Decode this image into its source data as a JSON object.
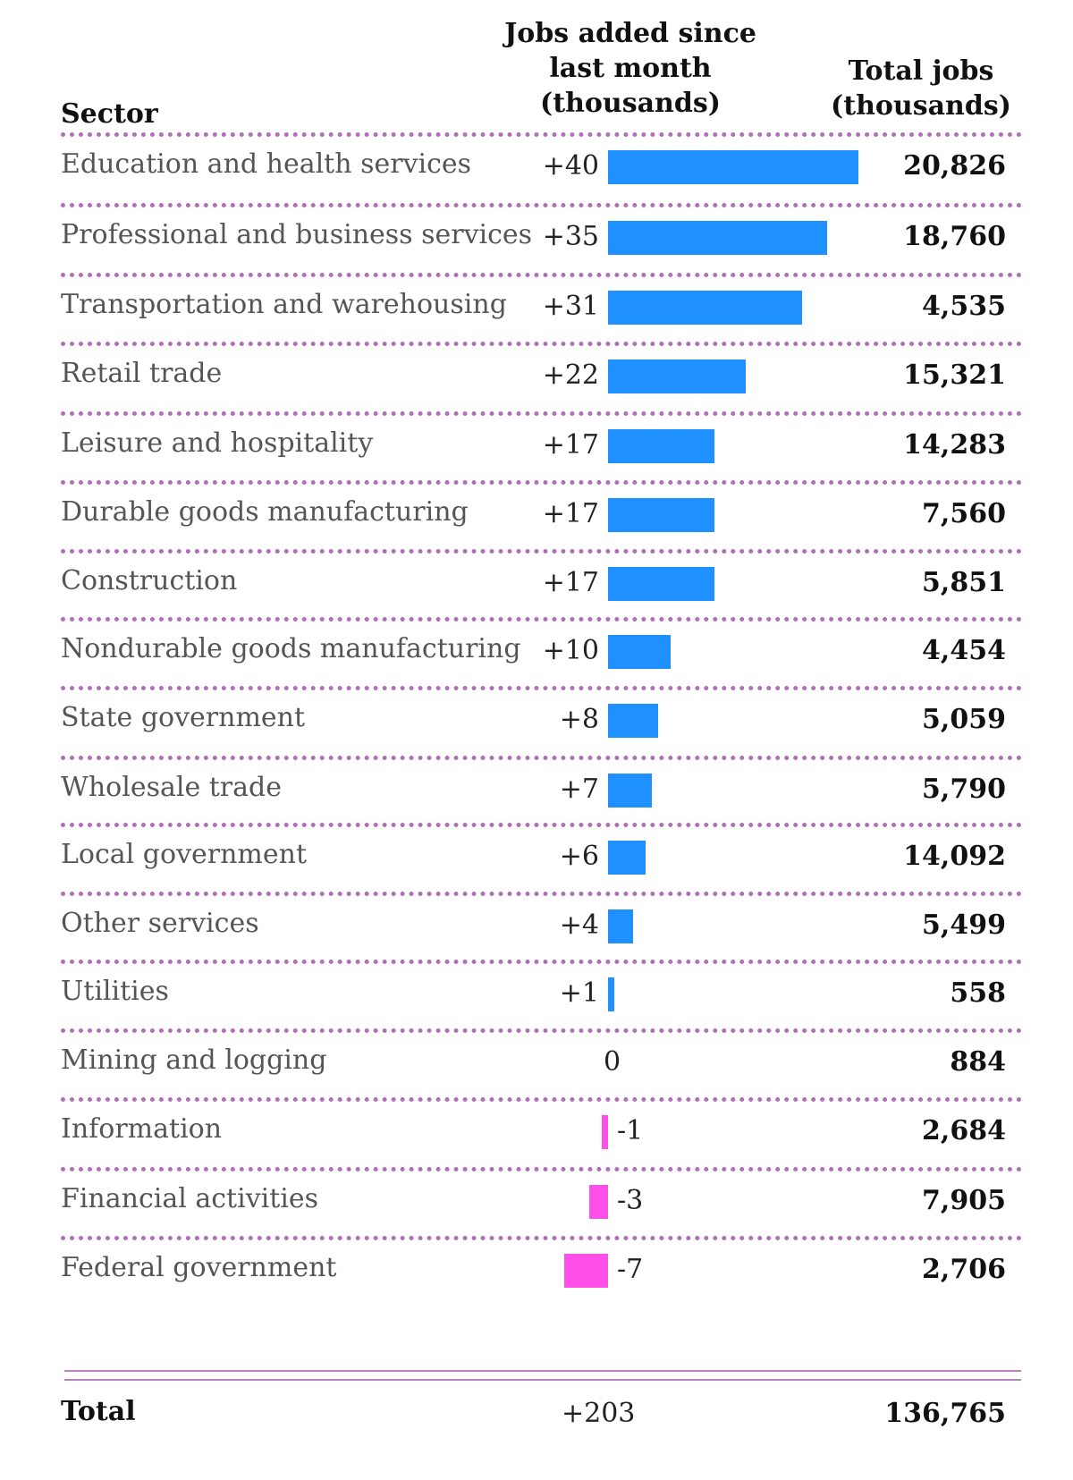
{
  "chart_data": {
    "type": "bar",
    "orientation": "horizontal",
    "columns": {
      "sector": "Sector",
      "change_lines": [
        "Jobs added since",
        "last month",
        "(thousands)"
      ],
      "total_lines": [
        "Total jobs",
        "(thousands)"
      ]
    },
    "rows": [
      {
        "sector": "Education and health services",
        "change": 40,
        "change_label": "+40",
        "total": "20,826"
      },
      {
        "sector": "Professional and business services",
        "change": 35,
        "change_label": "+35",
        "total": "18,760"
      },
      {
        "sector": "Transportation and warehousing",
        "change": 31,
        "change_label": "+31",
        "total": "4,535"
      },
      {
        "sector": "Retail trade",
        "change": 22,
        "change_label": "+22",
        "total": "15,321"
      },
      {
        "sector": "Leisure and hospitality",
        "change": 17,
        "change_label": "+17",
        "total": "14,283"
      },
      {
        "sector": "Durable goods manufacturing",
        "change": 17,
        "change_label": "+17",
        "total": "7,560"
      },
      {
        "sector": "Construction",
        "change": 17,
        "change_label": "+17",
        "total": "5,851"
      },
      {
        "sector": "Nondurable goods manufacturing",
        "change": 10,
        "change_label": "+10",
        "total": "4,454"
      },
      {
        "sector": "State government",
        "change": 8,
        "change_label": "+8",
        "total": "5,059"
      },
      {
        "sector": "Wholesale trade",
        "change": 7,
        "change_label": "+7",
        "total": "5,790"
      },
      {
        "sector": "Local government",
        "change": 6,
        "change_label": "+6",
        "total": "14,092"
      },
      {
        "sector": "Other services",
        "change": 4,
        "change_label": "+4",
        "total": "5,499"
      },
      {
        "sector": "Utilities",
        "change": 1,
        "change_label": "+1",
        "total": "558"
      },
      {
        "sector": "Mining and logging",
        "change": 0,
        "change_label": "0",
        "total": "884"
      },
      {
        "sector": "Information",
        "change": -1,
        "change_label": "-1",
        "total": "2,684"
      },
      {
        "sector": "Financial activities",
        "change": -3,
        "change_label": "-3",
        "total": "7,905"
      },
      {
        "sector": "Federal government",
        "change": -7,
        "change_label": "-7",
        "total": "2,706"
      }
    ],
    "total": {
      "label": "Total",
      "change_label": "+203",
      "total": "136,765"
    },
    "colors": {
      "positive": "#1e90ff",
      "negative": "#ff4fe8",
      "separator": "#b070b8"
    }
  }
}
